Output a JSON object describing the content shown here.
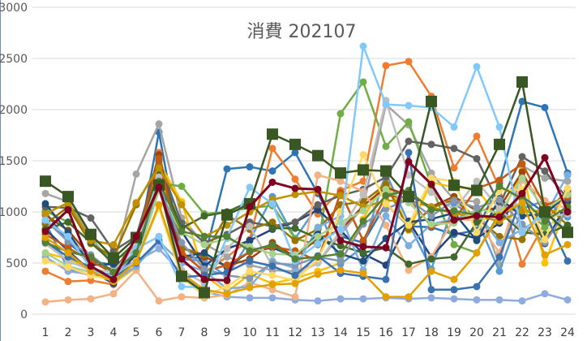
{
  "chart_data": {
    "type": "line",
    "title": "消費 202107",
    "xlabel": "",
    "ylabel": "",
    "x": [
      1,
      2,
      3,
      4,
      5,
      6,
      7,
      8,
      9,
      10,
      11,
      12,
      13,
      14,
      15,
      16,
      17,
      18,
      19,
      20,
      21,
      22,
      23,
      24
    ],
    "ylim": [
      0,
      3000
    ],
    "yticks": [
      0,
      500,
      1000,
      1500,
      2000,
      2500,
      3000
    ],
    "grid": true,
    "legend": "none",
    "series": [
      {
        "color": "#2E75B6",
        "marker": "circle",
        "width": 2.5,
        "values": [
          1000,
          700,
          520,
          480,
          560,
          1780,
          560,
          550,
          1420,
          1440,
          1400,
          1580,
          1180,
          760,
          700,
          1080,
          860,
          850,
          780,
          820,
          1280,
          2080,
          2020,
          1380
        ]
      },
      {
        "color": "#ED7D31",
        "marker": "circle",
        "width": 2.5,
        "values": [
          420,
          320,
          330,
          290,
          620,
          1580,
          620,
          410,
          560,
          730,
          1620,
          1320,
          980,
          1210,
          1300,
          2430,
          2470,
          2130,
          1430,
          1740,
          1230,
          490,
          890,
          1190
        ]
      },
      {
        "color": "#A5A5A5",
        "marker": "circle",
        "width": 2.5,
        "values": [
          1180,
          1100,
          760,
          460,
          1370,
          1860,
          940,
          690,
          560,
          480,
          430,
          420,
          500,
          780,
          1050,
          2050,
          1850,
          1380,
          1120,
          1100,
          480,
          1450,
          1330,
          1300
        ]
      },
      {
        "color": "#FFC000",
        "marker": "circle",
        "width": 2.5,
        "values": [
          600,
          540,
          460,
          300,
          460,
          1480,
          1100,
          380,
          220,
          390,
          300,
          350,
          420,
          500,
          930,
          1340,
          820,
          1290,
          1240,
          1230,
          930,
          1400,
          500,
          1080
        ]
      },
      {
        "color": "#5B9BD5",
        "marker": "circle",
        "width": 2.5,
        "values": [
          900,
          440,
          380,
          360,
          620,
          1220,
          540,
          520,
          370,
          720,
          1150,
          740,
          1060,
          490,
          660,
          1380,
          890,
          440,
          1080,
          930,
          420,
          1030,
          1110,
          950
        ]
      },
      {
        "color": "#70AD47",
        "marker": "circle",
        "width": 2.5,
        "values": [
          1010,
          900,
          700,
          540,
          620,
          1280,
          1250,
          980,
          1000,
          1040,
          1060,
          740,
          680,
          1960,
          2270,
          1640,
          1880,
          1260,
          680,
          600,
          990,
          1060,
          850,
          980
        ]
      },
      {
        "color": "#264478",
        "marker": "circle",
        "width": 2.5,
        "values": [
          830,
          620,
          420,
          300,
          600,
          1400,
          810,
          470,
          640,
          720,
          830,
          900,
          1020,
          820,
          590,
          480,
          910,
          560,
          800,
          740,
          890,
          1190,
          690,
          1100
        ]
      },
      {
        "color": "#9E480E",
        "marker": "circle",
        "width": 2.5,
        "values": [
          970,
          820,
          560,
          420,
          720,
          1560,
          650,
          560,
          470,
          540,
          700,
          560,
          740,
          820,
          1060,
          1240,
          1160,
          1050,
          1150,
          1010,
          1040,
          1390,
          980,
          1210
        ]
      },
      {
        "color": "#636363",
        "marker": "circle",
        "width": 2.5,
        "values": [
          1050,
          1040,
          940,
          620,
          760,
          1500,
          890,
          700,
          780,
          900,
          860,
          900,
          1070,
          1160,
          1220,
          1340,
          1690,
          1660,
          1620,
          1520,
          1070,
          1540,
          1400,
          1130
        ]
      },
      {
        "color": "#997300",
        "marker": "circle",
        "width": 2.5,
        "values": [
          880,
          1050,
          690,
          560,
          1070,
          1460,
          650,
          580,
          970,
          830,
          900,
          720,
          830,
          1070,
          1100,
          1270,
          830,
          1040,
          1120,
          940,
          760,
          730,
          1080,
          870
        ]
      },
      {
        "color": "#8FAADC",
        "marker": "circle",
        "width": 2.5,
        "values": [
          560,
          420,
          390,
          400,
          520,
          640,
          400,
          220,
          170,
          160,
          160,
          140,
          130,
          150,
          150,
          160,
          150,
          160,
          150,
          140,
          140,
          130,
          200,
          140
        ]
      },
      {
        "color": "#F4B183",
        "marker": "circle",
        "width": 2.5,
        "values": [
          120,
          140,
          150,
          200,
          430,
          130,
          170,
          160,
          190,
          310,
          240,
          170,
          1360,
          1300,
          1200,
          870,
          430,
          560,
          930,
          920,
          600,
          1310,
          1110,
          1030
        ]
      },
      {
        "color": "#43682B",
        "marker": "circle",
        "width": 2.5,
        "values": [
          830,
          900,
          700,
          500,
          710,
          1400,
          840,
          960,
          1000,
          1100,
          840,
          840,
          740,
          670,
          600,
          650,
          490,
          540,
          560,
          900,
          1000,
          800,
          780,
          870
        ]
      },
      {
        "color": "#7CAFDD",
        "marker": "circle",
        "width": 2.5,
        "values": [
          730,
          510,
          450,
          320,
          470,
          710,
          500,
          420,
          250,
          270,
          520,
          450,
          850,
          960,
          430,
          960,
          670,
          880,
          930,
          1000,
          700,
          830,
          960,
          1360
        ]
      },
      {
        "color": "#1F4E79",
        "marker": "circle",
        "width": 2.5,
        "values": [
          1080,
          800,
          480,
          490,
          550,
          1330,
          560,
          600,
          460,
          610,
          650,
          560,
          780,
          590,
          520,
          740,
          900,
          930,
          990,
          720,
          1130,
          960,
          980,
          1170
        ]
      },
      {
        "color": "#C55A11",
        "marker": "circle",
        "width": 2.5,
        "values": [
          780,
          650,
          520,
          400,
          680,
          1520,
          600,
          420,
          480,
          610,
          660,
          620,
          520,
          1190,
          720,
          1160,
          1140,
          860,
          920,
          1230,
          1310,
          1470,
          1060,
          1150
        ]
      },
      {
        "color": "#BFBFBF",
        "marker": "circle",
        "width": 2.5,
        "values": [
          690,
          520,
          430,
          420,
          670,
          1340,
          430,
          300,
          640,
          860,
          470,
          380,
          500,
          820,
          1170,
          2090,
          1360,
          1190,
          1020,
          1300,
          1030,
          820,
          950,
          980
        ]
      },
      {
        "color": "#BF9000",
        "marker": "circle",
        "width": 2.5,
        "values": [
          980,
          1090,
          720,
          680,
          1090,
          1430,
          1070,
          760,
          870,
          1000,
          1120,
          1170,
          1200,
          1160,
          1050,
          1110,
          1110,
          1050,
          980,
          960,
          910,
          1010,
          1010,
          1010
        ]
      },
      {
        "color": "#A9D18E",
        "marker": "circle",
        "width": 2.5,
        "values": [
          600,
          470,
          410,
          370,
          510,
          1210,
          800,
          680,
          740,
          660,
          590,
          580,
          760,
          900,
          1010,
          1220,
          1090,
          880,
          890,
          1030,
          990,
          1330,
          1020,
          1170
        ]
      },
      {
        "color": "#8497B0",
        "marker": "circle",
        "width": 2.5,
        "values": [
          920,
          710,
          580,
          400,
          620,
          1260,
          700,
          440,
          380,
          350,
          500,
          480,
          560,
          520,
          880,
          1030,
          1120,
          960,
          1110,
          1040,
          1120,
          880,
          700,
          1020
        ]
      },
      {
        "color": "#FFD966",
        "marker": "circle",
        "width": 2.5,
        "values": [
          520,
          460,
          380,
          330,
          520,
          1040,
          360,
          180,
          270,
          420,
          380,
          330,
          540,
          1000,
          1560,
          1080,
          870,
          1330,
          1300,
          800,
          1210,
          1220,
          730,
          1230
        ]
      },
      {
        "color": "#3A71B0",
        "marker": "circle",
        "width": 2.5,
        "values": [
          710,
          560,
          460,
          360,
          500,
          720,
          360,
          380,
          410,
          520,
          470,
          380,
          570,
          400,
          370,
          340,
          1580,
          240,
          240,
          270,
          560,
          1150,
          990,
          520
        ]
      },
      {
        "color": "#82C8FA",
        "marker": "circle",
        "width": 2.5,
        "values": [
          920,
          760,
          450,
          360,
          640,
          760,
          270,
          260,
          750,
          1240,
          1080,
          520,
          690,
          830,
          2620,
          2050,
          2040,
          2020,
          1830,
          2420,
          1830,
          800,
          1010,
          810
        ]
      },
      {
        "color": "#548235",
        "marker": "circle",
        "width": 2.5,
        "values": [
          700,
          610,
          560,
          410,
          600,
          1300,
          810,
          760,
          760,
          620,
          680,
          540,
          560,
          590,
          910,
          1160,
          1210,
          1020,
          1010,
          970,
          1250,
          1130,
          910,
          1050
        ]
      },
      {
        "color": "#E2A100",
        "marker": "circle",
        "width": 2.5,
        "values": [
          750,
          600,
          420,
          320,
          510,
          1070,
          400,
          240,
          200,
          260,
          290,
          300,
          390,
          430,
          400,
          170,
          170,
          420,
          340,
          600,
          970,
          1090,
          580,
          680
        ]
      },
      {
        "color": "#385723",
        "marker": "square",
        "width": 2.5,
        "values": [
          1300,
          1150,
          780,
          550,
          750,
          1260,
          370,
          210,
          970,
          1080,
          1760,
          1660,
          1550,
          1380,
          1410,
          1400,
          1150,
          2080,
          1260,
          1210,
          1660,
          2270,
          1000,
          800
        ]
      },
      {
        "color": "#800020",
        "marker": "circle",
        "width": 3,
        "values": [
          810,
          1020,
          470,
          340,
          760,
          1240,
          540,
          340,
          330,
          1050,
          1290,
          1230,
          1220,
          720,
          660,
          650,
          1490,
          1270,
          920,
          960,
          950,
          1180,
          1530,
          1000
        ]
      }
    ]
  }
}
